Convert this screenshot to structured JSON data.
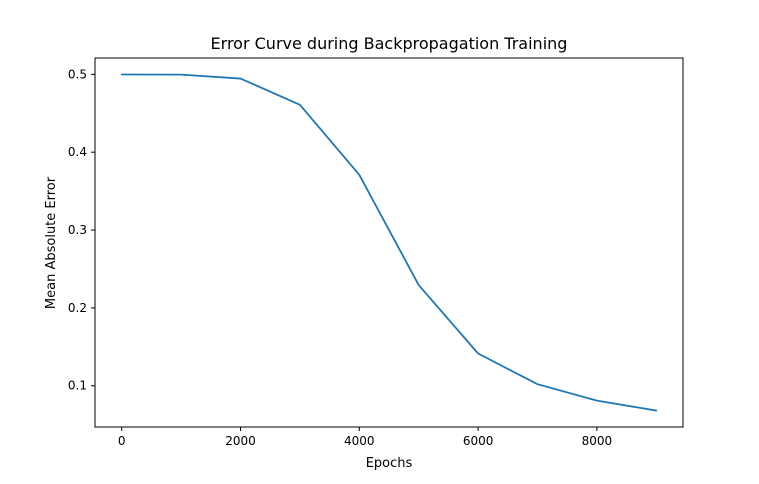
{
  "chart_data": {
    "type": "line",
    "title": "Error Curve during Backpropagation Training",
    "xlabel": "Epochs",
    "ylabel": "Mean Absolute Error",
    "xlim": [
      -450,
      9450
    ],
    "ylim": [
      0.047,
      0.521
    ],
    "x_ticks": [
      0,
      2000,
      4000,
      6000,
      8000
    ],
    "x_tick_labels": [
      "0",
      "2000",
      "4000",
      "6000",
      "8000"
    ],
    "y_ticks": [
      0.1,
      0.2,
      0.3,
      0.4,
      0.5
    ],
    "y_tick_labels": [
      "0.1",
      "0.2",
      "0.3",
      "0.4",
      "0.5"
    ],
    "grid": false,
    "series": [
      {
        "color": "#1f77b4",
        "x": [
          0,
          1000,
          2000,
          3000,
          4000,
          5000,
          6000,
          7000,
          8000,
          9000
        ],
        "y": [
          0.4998,
          0.4996,
          0.4946,
          0.4609,
          0.3709,
          0.2293,
          0.1414,
          0.102,
          0.0809,
          0.0681
        ]
      }
    ]
  }
}
